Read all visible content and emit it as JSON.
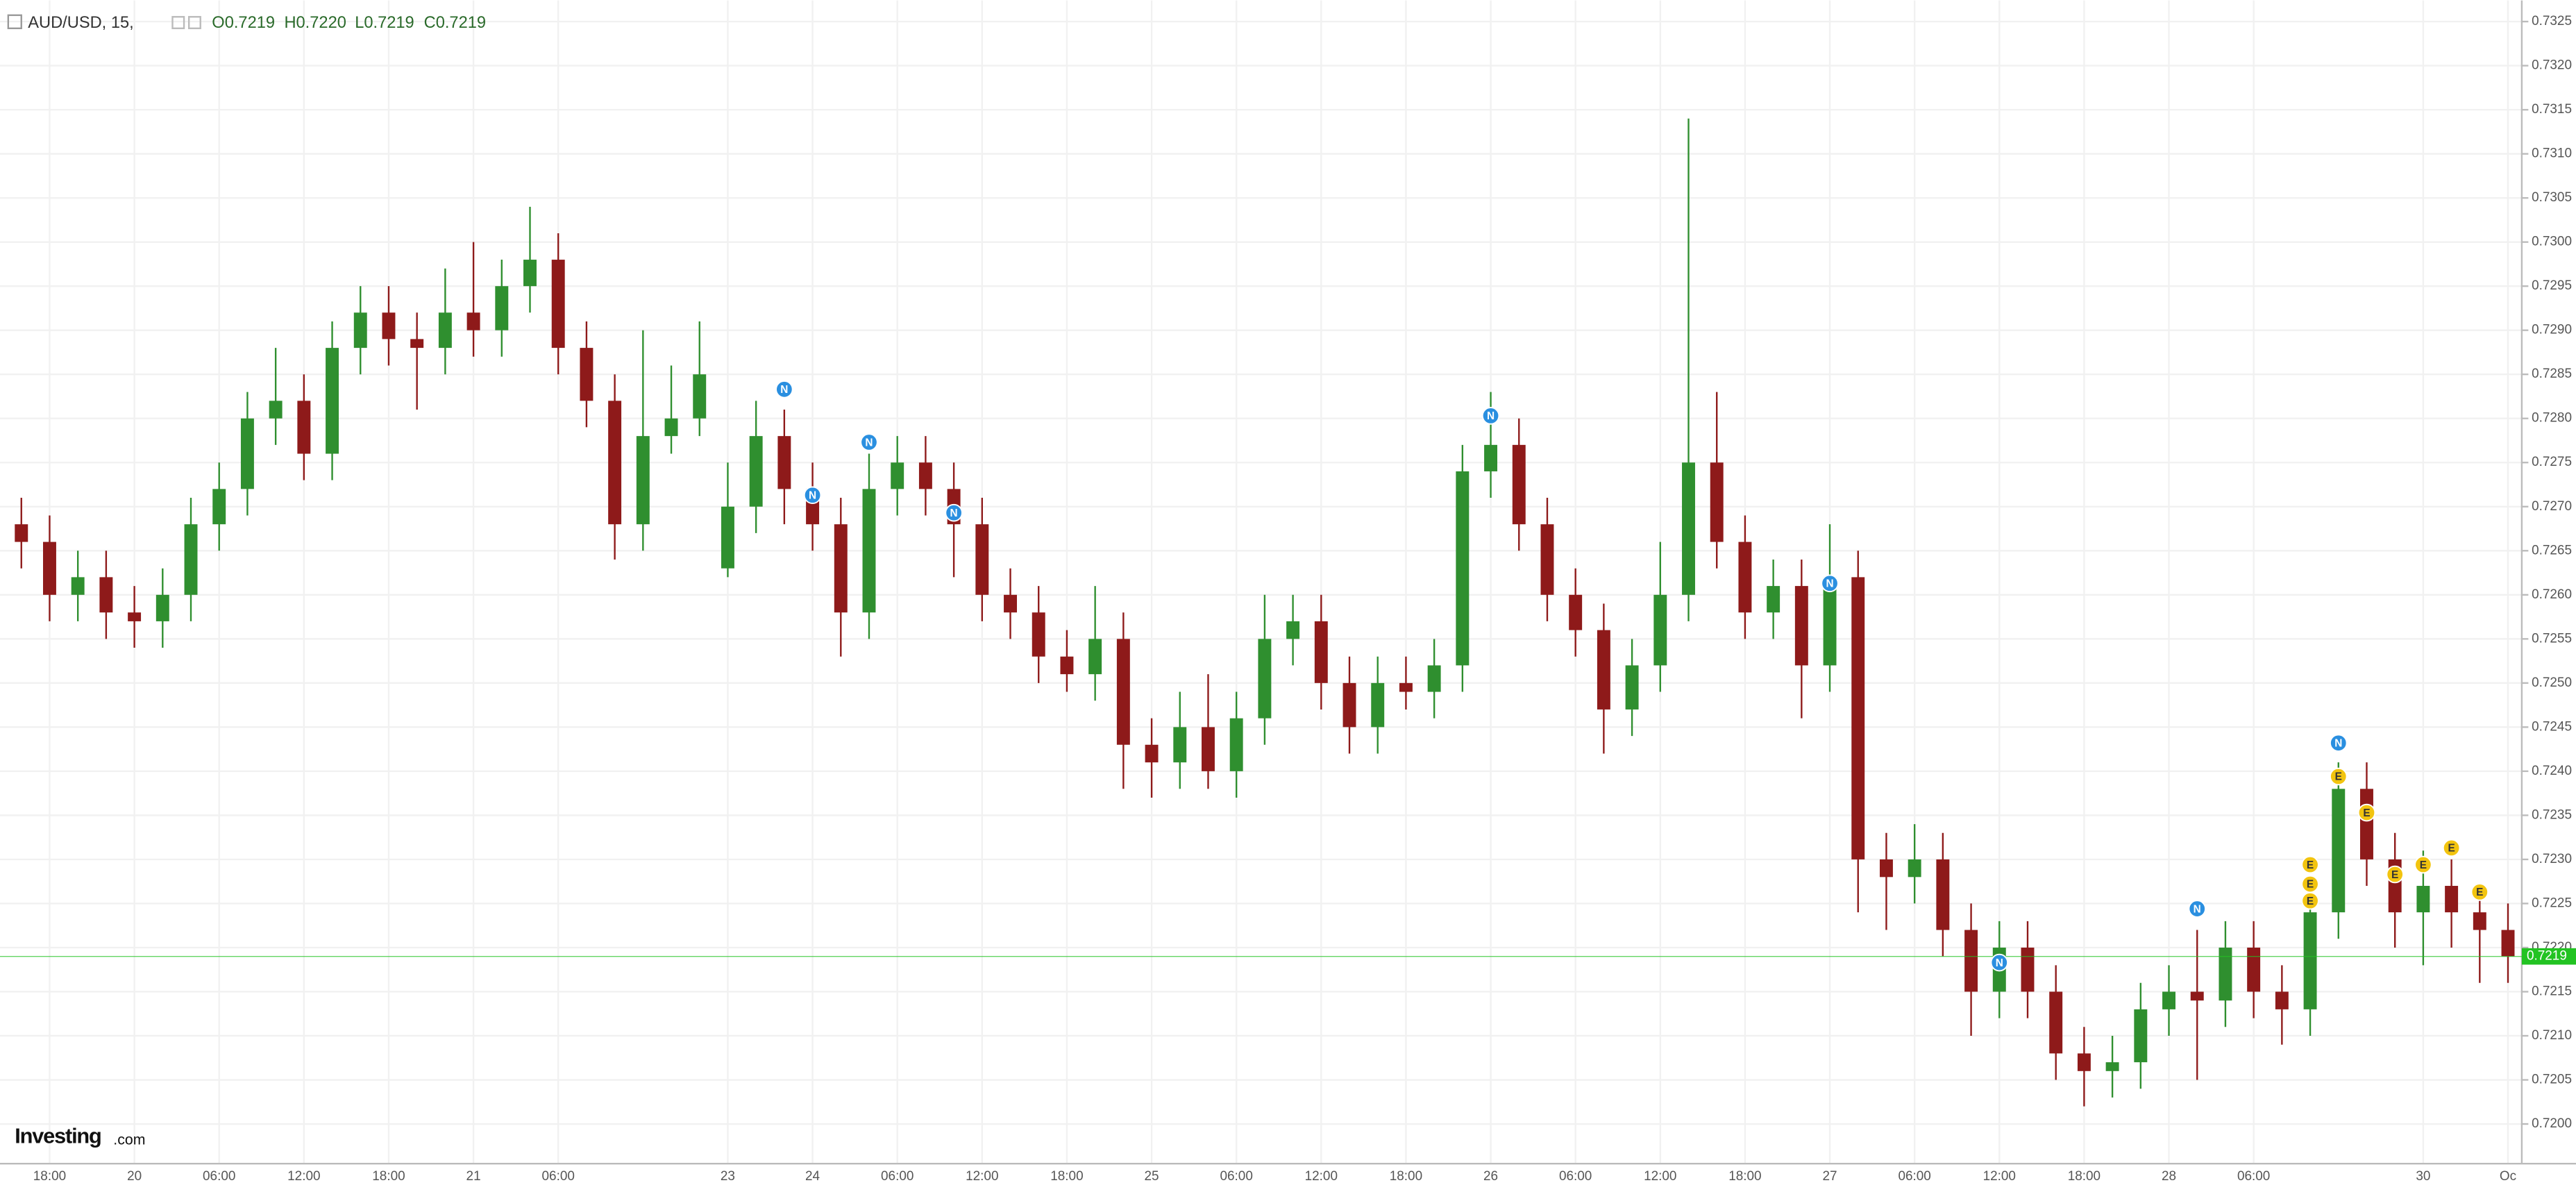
{
  "chart_data": {
    "type": "candlestick",
    "title": "AUD/USD, 15,",
    "ohlc_header": [
      "O0.7219",
      "H0.7220",
      "L0.7219",
      "C0.7219"
    ],
    "logo": "Investing",
    "logo_suffix": ".com",
    "up_color": "#2f8f2f",
    "down_color": "#8e1a1a",
    "grid": true,
    "categories": [
      null,
      "18:00",
      null,
      null,
      "20",
      null,
      null,
      "06:00",
      null,
      null,
      "12:00",
      null,
      null,
      "18:00",
      null,
      null,
      "21",
      null,
      null,
      "06:00",
      null,
      null,
      null,
      null,
      null,
      "23",
      null,
      null,
      "24",
      null,
      null,
      "06:00",
      null,
      null,
      "12:00",
      null,
      null,
      "18:00",
      null,
      null,
      "25",
      null,
      null,
      "06:00",
      null,
      null,
      "12:00",
      null,
      null,
      "18:00",
      null,
      null,
      "26",
      null,
      null,
      "06:00",
      null,
      null,
      "12:00",
      null,
      null,
      "18:00",
      null,
      null,
      "27",
      null,
      null,
      "06:00",
      null,
      null,
      "12:00",
      null,
      null,
      "18:00",
      null,
      null,
      "28",
      null,
      null,
      "06:00",
      null,
      null,
      null,
      null,
      null,
      "30",
      null,
      null,
      "Oc"
    ],
    "open": [
      0.7268,
      0.7266,
      0.726,
      0.7262,
      0.7258,
      0.7257,
      0.726,
      0.7268,
      0.7272,
      0.728,
      0.7282,
      0.7276,
      0.7288,
      0.7292,
      0.7289,
      0.7288,
      0.7292,
      0.729,
      0.7295,
      0.7298,
      0.7288,
      0.7282,
      0.7268,
      0.7278,
      0.728,
      0.7263,
      0.727,
      0.7278,
      0.7272,
      0.7268,
      0.7258,
      0.7272,
      0.7275,
      0.7272,
      0.7268,
      0.726,
      0.7258,
      0.7253,
      0.7251,
      0.7255,
      0.7243,
      0.7241,
      0.7245,
      0.724,
      0.7246,
      0.7255,
      0.7257,
      0.725,
      0.7245,
      0.725,
      0.7249,
      0.7252,
      0.7274,
      0.7277,
      0.7268,
      0.726,
      0.7256,
      0.7247,
      0.7252,
      0.726,
      0.7275,
      0.7266,
      0.7258,
      0.7261,
      0.7252,
      0.7262,
      0.723,
      0.7228,
      0.723,
      0.7222,
      0.7215,
      0.722,
      0.7215,
      0.7208,
      0.7206,
      0.7207,
      0.7213,
      0.7215,
      0.7214,
      0.722,
      0.7215,
      0.7213,
      0.7224,
      0.7238,
      0.723,
      0.7224,
      0.7227,
      0.7224,
      0.7222
    ],
    "high": [
      0.7271,
      0.7269,
      0.7265,
      0.7265,
      0.7261,
      0.7263,
      0.7271,
      0.7275,
      0.7283,
      0.7288,
      0.7285,
      0.7291,
      0.7295,
      0.7295,
      0.7292,
      0.7297,
      0.73,
      0.7298,
      0.7304,
      0.7301,
      0.7291,
      0.7285,
      0.729,
      0.7286,
      0.7291,
      0.7275,
      0.7282,
      0.7281,
      0.7275,
      0.7271,
      0.7276,
      0.7278,
      0.7278,
      0.7275,
      0.7271,
      0.7263,
      0.7261,
      0.7256,
      0.7261,
      0.7258,
      0.7246,
      0.7249,
      0.7251,
      0.7249,
      0.726,
      0.726,
      0.726,
      0.7253,
      0.7253,
      0.7253,
      0.7255,
      0.7277,
      0.7283,
      0.728,
      0.7271,
      0.7263,
      0.7259,
      0.7255,
      0.7266,
      0.7314,
      0.7283,
      0.7269,
      0.7264,
      0.7264,
      0.7268,
      0.7265,
      0.7233,
      0.7234,
      0.7233,
      0.7225,
      0.7223,
      0.7223,
      0.7218,
      0.7211,
      0.721,
      0.7216,
      0.7218,
      0.7222,
      0.7223,
      0.7223,
      0.7218,
      0.7227,
      0.7241,
      0.7241,
      0.7233,
      0.7231,
      0.723,
      0.7227,
      0.7225
    ],
    "low": [
      0.7263,
      0.7257,
      0.7257,
      0.7255,
      0.7254,
      0.7254,
      0.7257,
      0.7265,
      0.7269,
      0.7277,
      0.7273,
      0.7273,
      0.7285,
      0.7286,
      0.7281,
      0.7285,
      0.7287,
      0.7287,
      0.7292,
      0.7285,
      0.7279,
      0.7264,
      0.7265,
      0.7276,
      0.7278,
      0.7262,
      0.7267,
      0.7268,
      0.7265,
      0.7253,
      0.7255,
      0.7269,
      0.7269,
      0.7262,
      0.7257,
      0.7255,
      0.725,
      0.7249,
      0.7248,
      0.7238,
      0.7237,
      0.7238,
      0.7238,
      0.7237,
      0.7243,
      0.7252,
      0.7247,
      0.7242,
      0.7242,
      0.7247,
      0.7246,
      0.7249,
      0.7271,
      0.7265,
      0.7257,
      0.7253,
      0.7242,
      0.7244,
      0.7249,
      0.7257,
      0.7263,
      0.7255,
      0.7255,
      0.7246,
      0.7249,
      0.7224,
      0.7222,
      0.7225,
      0.7219,
      0.721,
      0.7212,
      0.7212,
      0.7205,
      0.7202,
      0.7203,
      0.7204,
      0.721,
      0.7205,
      0.7211,
      0.7212,
      0.7209,
      0.721,
      0.7221,
      0.7227,
      0.722,
      0.7218,
      0.722,
      0.7216,
      0.7216
    ],
    "close": [
      0.7266,
      0.726,
      0.7262,
      0.7258,
      0.7257,
      0.726,
      0.7268,
      0.7272,
      0.728,
      0.7282,
      0.7276,
      0.7288,
      0.7292,
      0.7289,
      0.7288,
      0.7292,
      0.729,
      0.7295,
      0.7298,
      0.7288,
      0.7282,
      0.7268,
      0.7278,
      0.728,
      0.7285,
      0.727,
      0.7278,
      0.7272,
      0.7268,
      0.7258,
      0.7272,
      0.7275,
      0.7272,
      0.7268,
      0.726,
      0.7258,
      0.7253,
      0.7251,
      0.7255,
      0.7243,
      0.7241,
      0.7245,
      0.724,
      0.7246,
      0.7255,
      0.7257,
      0.725,
      0.7245,
      0.725,
      0.7249,
      0.7252,
      0.7274,
      0.7277,
      0.7268,
      0.726,
      0.7256,
      0.7247,
      0.7252,
      0.726,
      0.7275,
      0.7266,
      0.7258,
      0.7261,
      0.7252,
      0.7262,
      0.723,
      0.7228,
      0.723,
      0.7222,
      0.7215,
      0.722,
      0.7215,
      0.7208,
      0.7206,
      0.7207,
      0.7213,
      0.7215,
      0.7214,
      0.722,
      0.7215,
      0.7213,
      0.7224,
      0.7238,
      0.723,
      0.7224,
      0.7227,
      0.7224,
      0.7222,
      0.7219
    ],
    "ylim": [
      0.71955,
      0.73274
    ],
    "yticks": [
      {
        "value": 0.72,
        "label": "0.7200"
      },
      {
        "value": 0.7205,
        "label": "0.7205"
      },
      {
        "value": 0.721,
        "label": "0.7210"
      },
      {
        "value": 0.7215,
        "label": "0.7215"
      },
      {
        "value": 0.722,
        "label": "0.7220"
      },
      {
        "value": 0.7225,
        "label": "0.7225"
      },
      {
        "value": 0.723,
        "label": "0.7230"
      },
      {
        "value": 0.7235,
        "label": "0.7235"
      },
      {
        "value": 0.724,
        "label": "0.7240"
      },
      {
        "value": 0.7245,
        "label": "0.7245"
      },
      {
        "value": 0.725,
        "label": "0.7250"
      },
      {
        "value": 0.7255,
        "label": "0.7255"
      },
      {
        "value": 0.726,
        "label": "0.7260"
      },
      {
        "value": 0.7265,
        "label": "0.7265"
      },
      {
        "value": 0.727,
        "label": "0.7270"
      },
      {
        "value": 0.7275,
        "label": "0.7275"
      },
      {
        "value": 0.728,
        "label": "0.7280"
      },
      {
        "value": 0.7285,
        "label": "0.7285"
      },
      {
        "value": 0.729,
        "label": "0.7290"
      },
      {
        "value": 0.7295,
        "label": "0.7295"
      },
      {
        "value": 0.73,
        "label": "0.7300"
      },
      {
        "value": 0.7305,
        "label": "0.7305"
      },
      {
        "value": 0.731,
        "label": "0.7310"
      },
      {
        "value": 0.7315,
        "label": "0.7315"
      },
      {
        "value": 0.732,
        "label": "0.7320"
      },
      {
        "value": 0.7325,
        "label": "0.7325"
      }
    ],
    "current_price": {
      "value": 0.7219,
      "label": "0.7219",
      "color": "#22c322"
    },
    "events": [
      {
        "label": "N",
        "at": 27,
        "price": 0.72833,
        "color": "#2a8fe0"
      },
      {
        "label": "N",
        "at": 28,
        "price": 0.72713,
        "color": "#2a8fe0"
      },
      {
        "label": "N",
        "at": 30,
        "price": 0.72773,
        "color": "#2a8fe0"
      },
      {
        "label": "N",
        "at": 33,
        "price": 0.72693,
        "color": "#2a8fe0"
      },
      {
        "label": "N",
        "at": 52,
        "price": 0.72803,
        "color": "#2a8fe0"
      },
      {
        "label": "N",
        "at": 64,
        "price": 0.72613,
        "color": "#2a8fe0"
      },
      {
        "label": "N",
        "at": 70,
        "price": 0.72183,
        "color": "#2a8fe0"
      },
      {
        "label": "N",
        "at": 77,
        "price": 0.72244,
        "color": "#2a8fe0"
      },
      {
        "label": "N",
        "at": 82,
        "price": 0.72432,
        "color": "#2a8fe0"
      },
      {
        "label": "E",
        "at": 82,
        "price": 0.72394,
        "color": "#f2c40f"
      },
      {
        "label": "E",
        "at": 83,
        "price": 0.72353,
        "color": "#f2c40f"
      },
      {
        "label": "E",
        "at": 81,
        "price": 0.72294,
        "color": "#f2c40f"
      },
      {
        "label": "E",
        "at": 81,
        "price": 0.72272,
        "color": "#f2c40f"
      },
      {
        "label": "E",
        "at": 81,
        "price": 0.72253,
        "color": "#f2c40f"
      },
      {
        "label": "E",
        "at": 84,
        "price": 0.72283,
        "color": "#f2c40f"
      },
      {
        "label": "E",
        "at": 85,
        "price": 0.72294,
        "color": "#f2c40f"
      },
      {
        "label": "E",
        "at": 86,
        "price": 0.72313,
        "color": "#f2c40f"
      },
      {
        "label": "E",
        "at": 87,
        "price": 0.72263,
        "color": "#f2c40f"
      }
    ]
  }
}
